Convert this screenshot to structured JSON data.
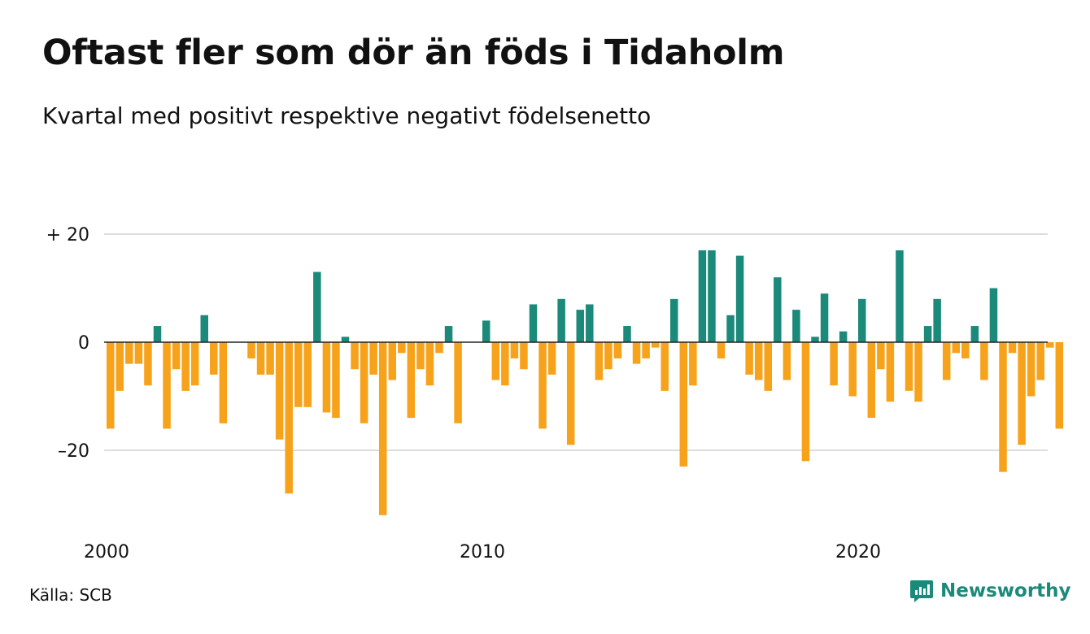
{
  "title": "Oftast fler som dör än föds i Tidaholm",
  "subtitle": "Kvartal med positivt respektive negativt födelsenetto",
  "source": "Källa: SCB",
  "brand": {
    "name": "Newsworthy",
    "icon": "newsworthy-logo-icon"
  },
  "colors": {
    "positive": "#1b8a7a",
    "negative": "#f7a21b",
    "grid": "#dddddd",
    "zero": "#222222",
    "brand": "#1b8a7a"
  },
  "chart_data": {
    "type": "bar",
    "start_year": 2000,
    "quarters_per_year": 4,
    "values": [
      -16,
      -9,
      -4,
      -4,
      -8,
      3,
      -16,
      -5,
      -9,
      -8,
      5,
      -6,
      -15,
      0,
      0,
      -3,
      -6,
      -6,
      -18,
      -28,
      -12,
      -12,
      13,
      -13,
      -14,
      1,
      -5,
      -15,
      -6,
      -32,
      -7,
      -2,
      -14,
      -5,
      -8,
      -2,
      3,
      -15,
      0,
      0,
      4,
      -7,
      -8,
      -3,
      -5,
      7,
      -16,
      -6,
      8,
      -19,
      6,
      7,
      -7,
      -5,
      -3,
      3,
      -4,
      -3,
      -1,
      -9,
      8,
      -23,
      -8,
      17,
      17,
      -3,
      5,
      16,
      -6,
      -7,
      -9,
      12,
      -7,
      6,
      -22,
      1,
      9,
      -8,
      2,
      -10,
      8,
      -14,
      -5,
      -11,
      17,
      -9,
      -11,
      3,
      8,
      -7,
      -2,
      -3,
      3,
      -7,
      10,
      -24,
      -2,
      -19,
      -10,
      -7,
      -1,
      -16
    ],
    "ylim": [
      -34,
      20
    ],
    "yticks": [
      {
        "value": 20,
        "label": "+ 20"
      },
      {
        "value": 0,
        "label": "0"
      },
      {
        "value": -20,
        "label": "–20"
      }
    ],
    "xticks": [
      {
        "value": 2000,
        "label": "2000"
      },
      {
        "value": 2010,
        "label": "2010"
      },
      {
        "value": 2020,
        "label": "2020"
      }
    ],
    "grid": true,
    "legend": "none"
  }
}
